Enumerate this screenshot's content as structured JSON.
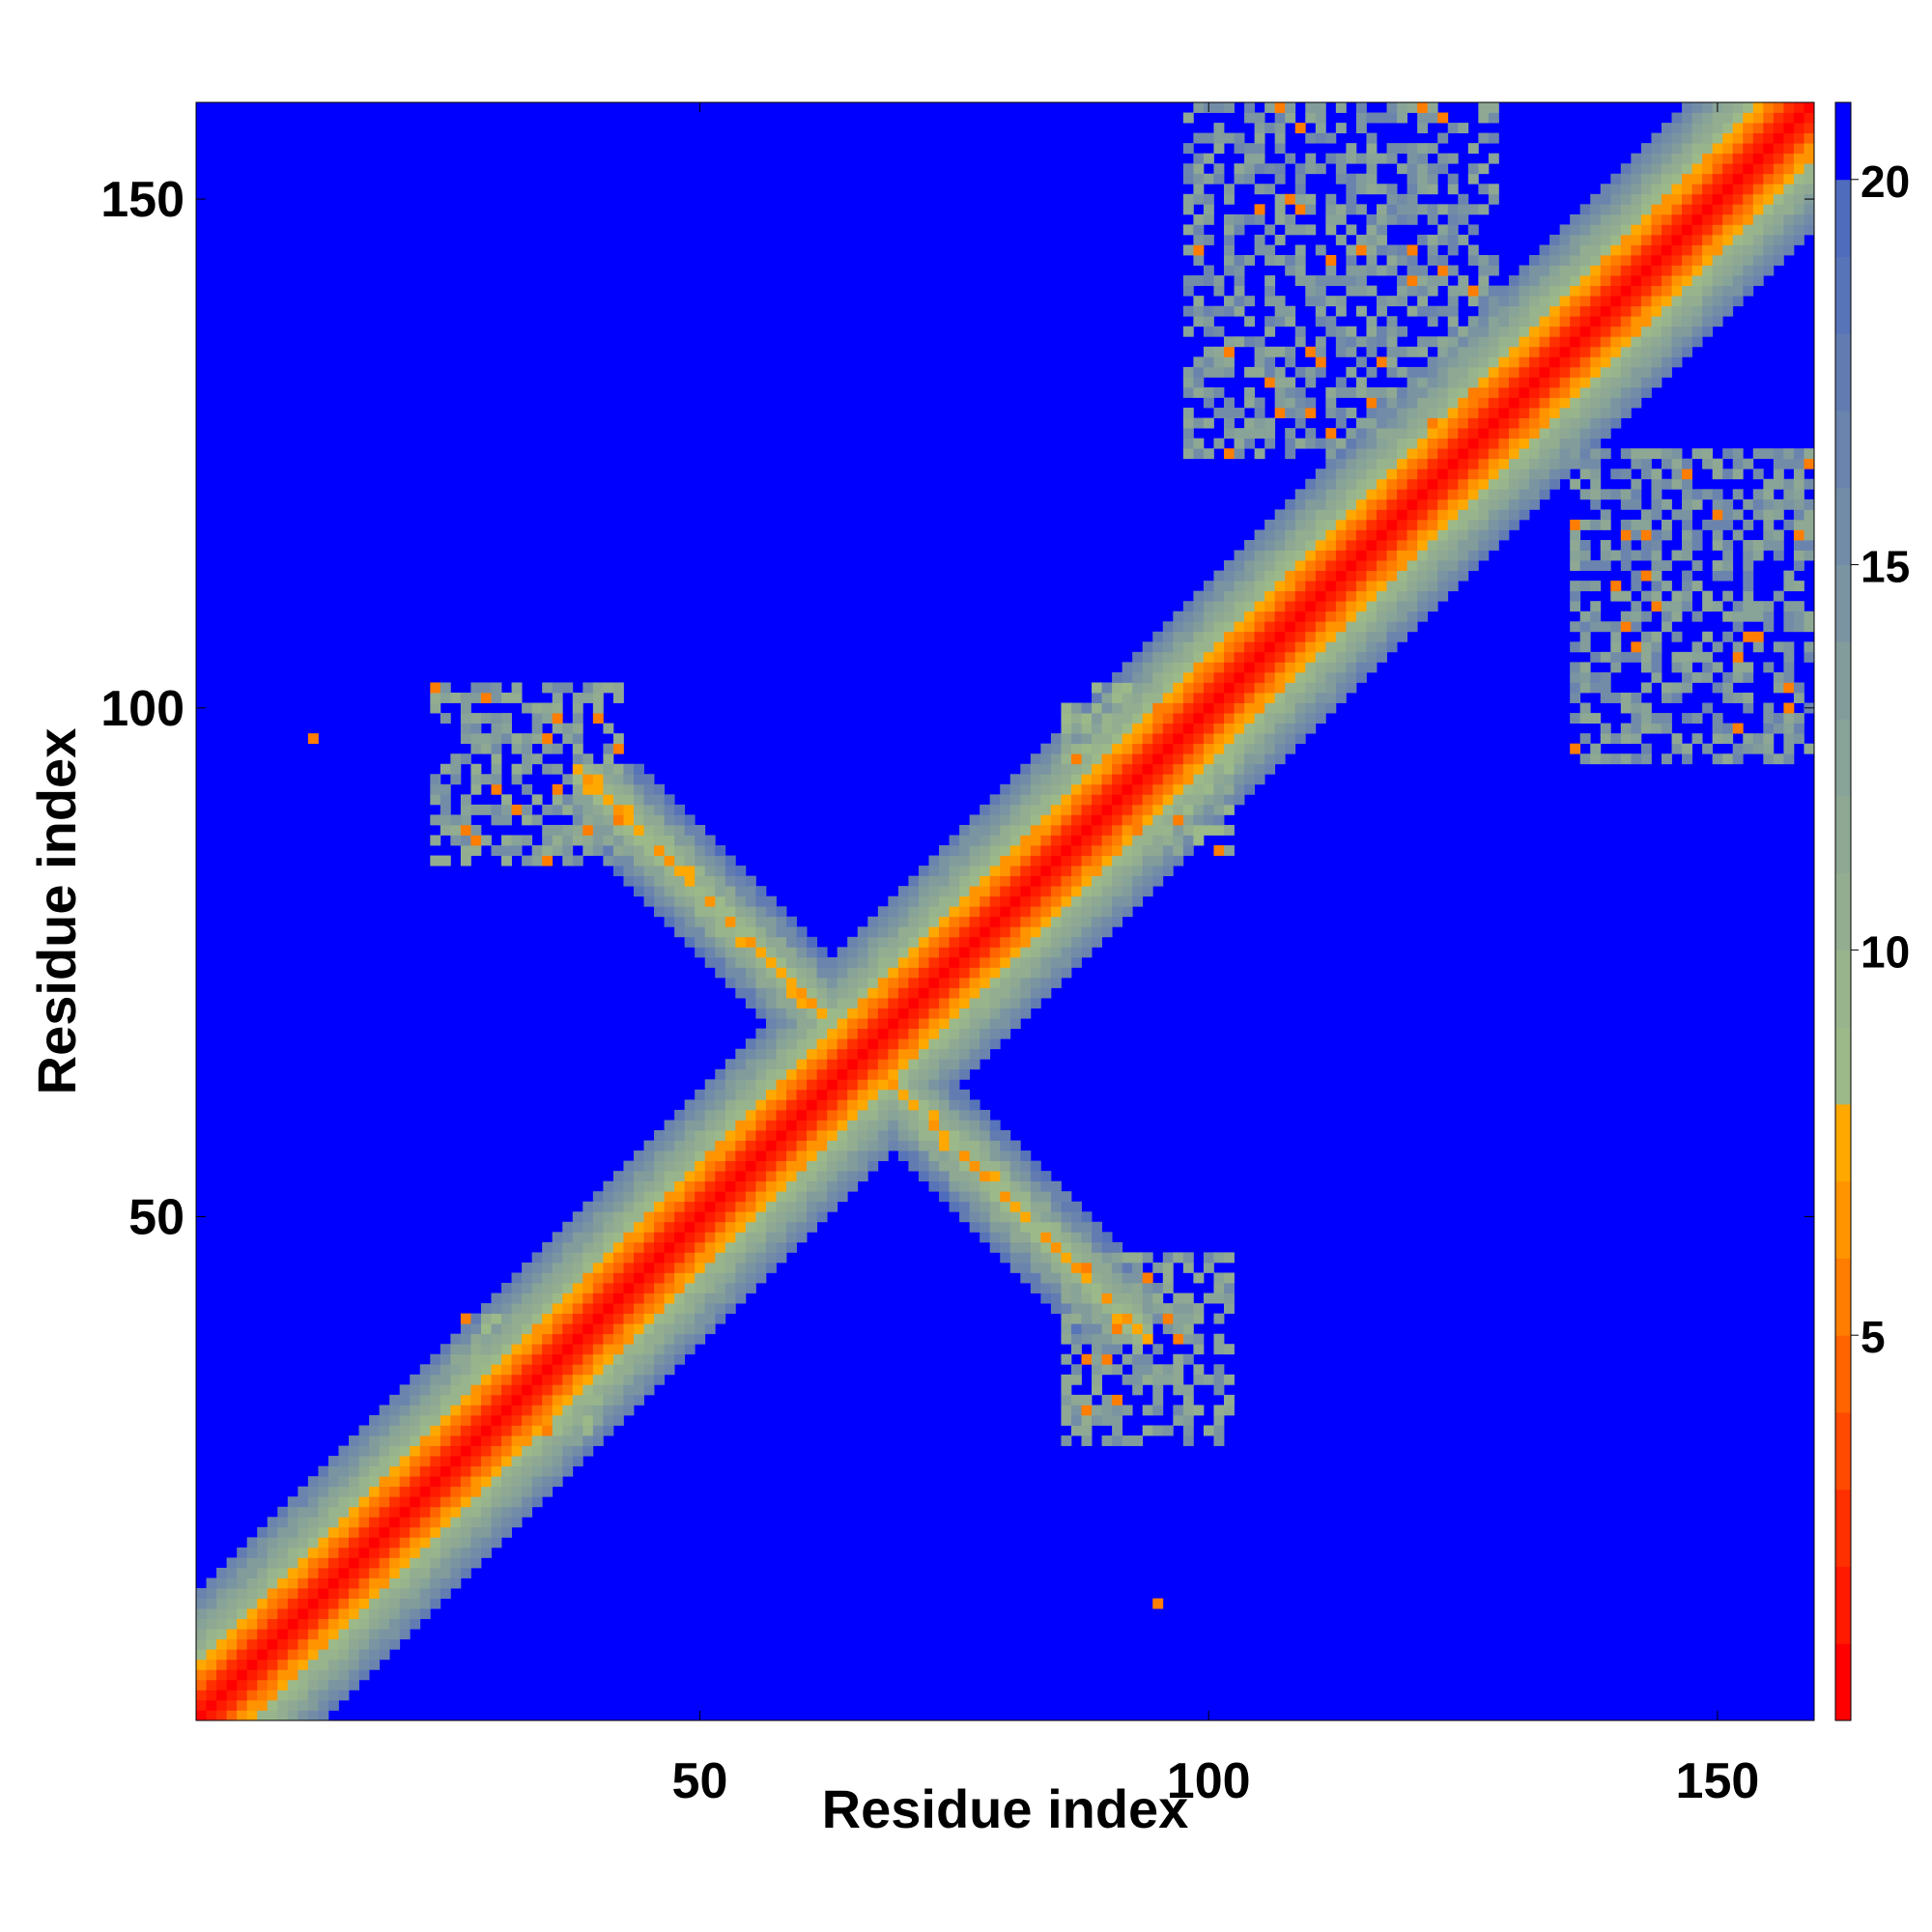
{
  "chart_data": {
    "type": "heatmap",
    "title": "",
    "xlabel": "Residue index",
    "ylabel": "Residue index",
    "n_residues": 159,
    "xlim": [
      1,
      159
    ],
    "ylim": [
      1,
      159
    ],
    "x_ticks": [
      50,
      100,
      150
    ],
    "y_ticks": [
      50,
      100,
      150
    ],
    "colorbar": {
      "ticks": [
        5,
        10,
        15,
        20
      ],
      "range": [
        0,
        21
      ],
      "levels": [
        {
          "max": 1,
          "color": "#ff0000"
        },
        {
          "max": 2,
          "color": "#ff1a00"
        },
        {
          "max": 3,
          "color": "#ff3000"
        },
        {
          "max": 4,
          "color": "#ff4a00"
        },
        {
          "max": 5,
          "color": "#ff6400"
        },
        {
          "max": 6,
          "color": "#ff7d00"
        },
        {
          "max": 7,
          "color": "#ff9400"
        },
        {
          "max": 8,
          "color": "#ffa800"
        },
        {
          "max": 9,
          "color": "#9cb98a"
        },
        {
          "max": 10,
          "color": "#98b48c"
        },
        {
          "max": 11,
          "color": "#93ad90"
        },
        {
          "max": 12,
          "color": "#8ea894"
        },
        {
          "max": 13,
          "color": "#88a398"
        },
        {
          "max": 14,
          "color": "#829c9c"
        },
        {
          "max": 15,
          "color": "#7a94a2"
        },
        {
          "max": 16,
          "color": "#728ca8"
        },
        {
          "max": 17,
          "color": "#6a84ae"
        },
        {
          "max": 18,
          "color": "#627cb2"
        },
        {
          "max": 19,
          "color": "#5874b8"
        },
        {
          "max": 20,
          "color": "#4f6cbc"
        },
        {
          "max": 21,
          "color": "#0000ff"
        }
      ]
    },
    "background_value": 21,
    "structure": {
      "main_diagonal": {
        "value_on_diagonal": 0,
        "halfwidth_residues": 6
      },
      "anti_diagonal": {
        "sum": 132,
        "range": [
          40,
          92
        ],
        "core_value": 6,
        "halfwidth_residues": 2.5
      },
      "contact_patches": [
        {
          "x": [
            98,
            128
          ],
          "y": [
            125,
            159
          ],
          "value": 14
        },
        {
          "x": [
            136,
            159
          ],
          "y": [
            95,
            125
          ],
          "value": 14
        },
        {
          "x": [
            24,
            42
          ],
          "y": [
            85,
            102
          ],
          "value": 13
        },
        {
          "x": [
            86,
            102
          ],
          "y": [
            28,
            46
          ],
          "value": 13
        },
        {
          "x": [
            26,
            40
          ],
          "y": [
            28,
            40
          ],
          "value": 11
        },
        {
          "x": [
            86,
            102
          ],
          "y": [
            86,
            102
          ],
          "value": 11
        }
      ],
      "isolated_points": [
        {
          "x": 12,
          "y": 97,
          "value": 6
        },
        {
          "x": 95,
          "y": 12,
          "value": 6
        },
        {
          "x": 109,
          "y": 157,
          "value": 6
        },
        {
          "x": 143,
          "y": 113,
          "value": 6
        },
        {
          "x": 152,
          "y": 105,
          "value": 6
        }
      ]
    }
  }
}
